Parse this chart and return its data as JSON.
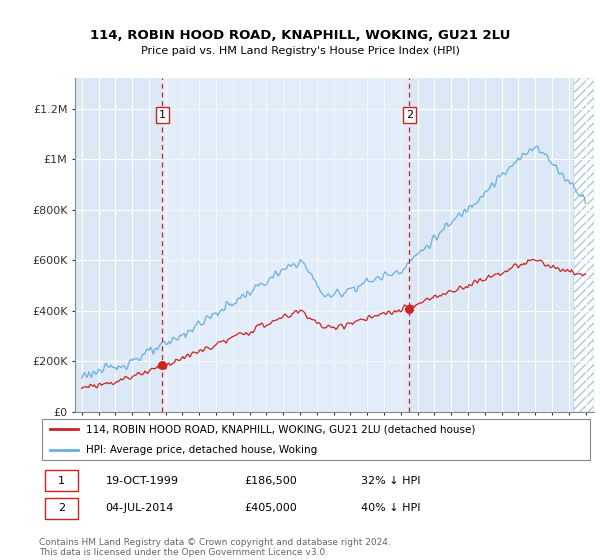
{
  "title": "114, ROBIN HOOD ROAD, KNAPHILL, WOKING, GU21 2LU",
  "subtitle": "Price paid vs. HM Land Registry's House Price Index (HPI)",
  "legend_entry1": "114, ROBIN HOOD ROAD, KNAPHILL, WOKING, GU21 2LU (detached house)",
  "legend_entry2": "HPI: Average price, detached house, Woking",
  "footnote": "Contains HM Land Registry data © Crown copyright and database right 2024.\nThis data is licensed under the Open Government Licence v3.0.",
  "sale1_date": "19-OCT-1999",
  "sale1_price": "£186,500",
  "sale1_hpi": "32% ↓ HPI",
  "sale2_date": "04-JUL-2014",
  "sale2_price": "£405,000",
  "sale2_hpi": "40% ↓ HPI",
  "hpi_color": "#6aaee0",
  "price_color": "#cc2222",
  "vline_color": "#cc2222",
  "background_color": "#dce8f5",
  "background_highlight": "#dce8f5",
  "yticks": [
    0,
    200000,
    400000,
    600000,
    800000,
    1000000,
    1200000
  ],
  "ylim": [
    0,
    1320000
  ],
  "xlim_start": 1994.6,
  "xlim_end": 2025.5,
  "sale1_x": 1999.8,
  "sale2_x": 2014.5
}
